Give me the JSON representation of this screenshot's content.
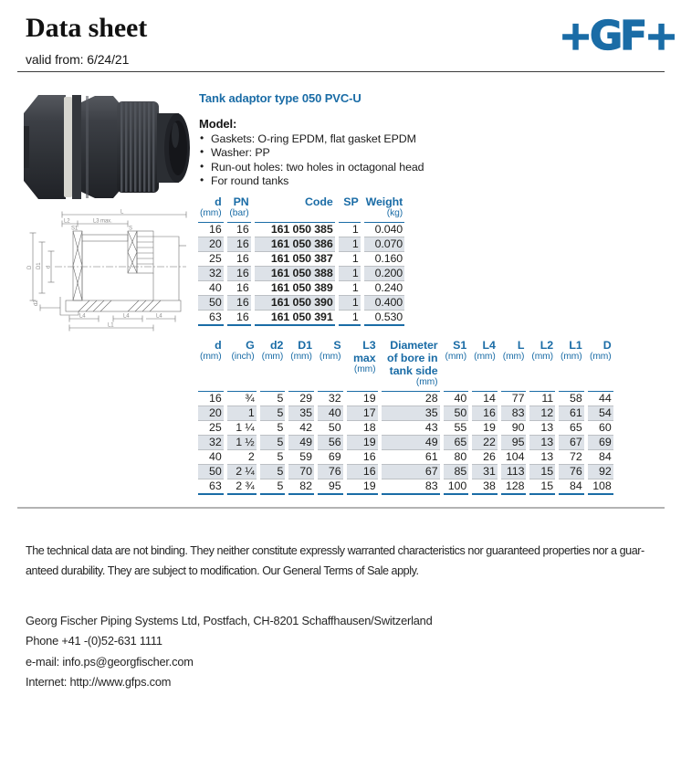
{
  "header": {
    "title": "Data sheet",
    "valid_from": "valid from: 6/24/21",
    "logo_text": "+GF+"
  },
  "colors": {
    "gf_blue": "#1a6ca6",
    "shaded_cell": "#dde2e8"
  },
  "product": {
    "title": "Tank adaptor type 050 PVC-U",
    "model_heading": "Model:",
    "model_bullets": [
      "Gaskets: O-ring EPDM, flat gasket EPDM",
      "Washer: PP",
      "Run-out holes: two holes in octagonal head",
      "For round tanks"
    ]
  },
  "drawing": {
    "labels": {
      "L": "L",
      "L2": "L2",
      "L3_max": "L3 max.",
      "S": "S",
      "S1": "S1",
      "D": "D",
      "D1": "D1",
      "d": "d",
      "d2": "d2",
      "L4": "L4",
      "L1": "L1"
    }
  },
  "order_table": {
    "columns": [
      {
        "label_lines": [
          "d"
        ],
        "unit": "(mm)"
      },
      {
        "label_lines": [
          "PN"
        ],
        "unit": "(bar)"
      },
      {
        "label_lines": [
          "Code"
        ],
        "bold": true
      },
      {
        "label_lines": [
          "SP"
        ]
      },
      {
        "label_lines": [
          "Weight"
        ],
        "unit": "(kg)"
      }
    ],
    "rows": [
      [
        "16",
        "16",
        "161 050 385",
        "1",
        "0.040"
      ],
      [
        "20",
        "16",
        "161 050 386",
        "1",
        "0.070"
      ],
      [
        "25",
        "16",
        "161 050 387",
        "1",
        "0.160"
      ],
      [
        "32",
        "16",
        "161 050 388",
        "1",
        "0.200"
      ],
      [
        "40",
        "16",
        "161 050 389",
        "1",
        "0.240"
      ],
      [
        "50",
        "16",
        "161 050 390",
        "1",
        "0.400"
      ],
      [
        "63",
        "16",
        "161 050 391",
        "1",
        "0.530"
      ]
    ]
  },
  "dimensions_table": {
    "columns": [
      {
        "label_lines": [
          "d"
        ],
        "unit": "(mm)"
      },
      {
        "label_lines": [
          "G"
        ],
        "unit": "(inch)"
      },
      {
        "label_lines": [
          "d2"
        ],
        "unit": "(mm)"
      },
      {
        "label_lines": [
          "D1"
        ],
        "unit": "(mm)"
      },
      {
        "label_lines": [
          "S"
        ],
        "unit": "(mm)"
      },
      {
        "label_lines": [
          "L3",
          "max"
        ],
        "unit": "(mm)"
      },
      {
        "label_lines": [
          "Diameter",
          "of bore in",
          "tank side"
        ],
        "unit": "(mm)"
      },
      {
        "label_lines": [
          "S1"
        ],
        "unit": "(mm)"
      },
      {
        "label_lines": [
          "L4"
        ],
        "unit": "(mm)"
      },
      {
        "label_lines": [
          "L"
        ],
        "unit": "(mm)"
      },
      {
        "label_lines": [
          "L2"
        ],
        "unit": "(mm)"
      },
      {
        "label_lines": [
          "L1"
        ],
        "unit": "(mm)"
      },
      {
        "label_lines": [
          "D"
        ],
        "unit": "(mm)"
      }
    ],
    "rows": [
      [
        "16",
        "¾",
        "5",
        "29",
        "32",
        "19",
        "28",
        "40",
        "14",
        "77",
        "11",
        "58",
        "44"
      ],
      [
        "20",
        "1",
        "5",
        "35",
        "40",
        "17",
        "35",
        "50",
        "16",
        "83",
        "12",
        "61",
        "54"
      ],
      [
        "25",
        "1 ¼",
        "5",
        "42",
        "50",
        "18",
        "43",
        "55",
        "19",
        "90",
        "13",
        "65",
        "60"
      ],
      [
        "32",
        "1 ½",
        "5",
        "49",
        "56",
        "19",
        "49",
        "65",
        "22",
        "95",
        "13",
        "67",
        "69"
      ],
      [
        "40",
        "2",
        "5",
        "59",
        "69",
        "16",
        "61",
        "80",
        "26",
        "104",
        "13",
        "72",
        "84"
      ],
      [
        "50",
        "2 ¼",
        "5",
        "70",
        "76",
        "16",
        "67",
        "85",
        "31",
        "113",
        "15",
        "76",
        "92"
      ],
      [
        "63",
        "2 ¾",
        "5",
        "82",
        "95",
        "19",
        "83",
        "100",
        "38",
        "128",
        "15",
        "84",
        "108"
      ]
    ]
  },
  "footer": {
    "disclaimer_lines": [
      "The technical data are not binding. They neither constitute expressly warranted characteristics nor guaranteed properties nor a guar-",
      "anteed durability. They are subject to modification. Our General Terms of Sale apply."
    ],
    "contact_lines": [
      "Georg Fischer Piping Systems Ltd, Postfach, CH-8201 Schaffhausen/Switzerland",
      "Phone +41 -(0)52-631 1111",
      "e-mail: info.ps@georgfischer.com",
      "Internet: http://www.gfps.com"
    ]
  }
}
